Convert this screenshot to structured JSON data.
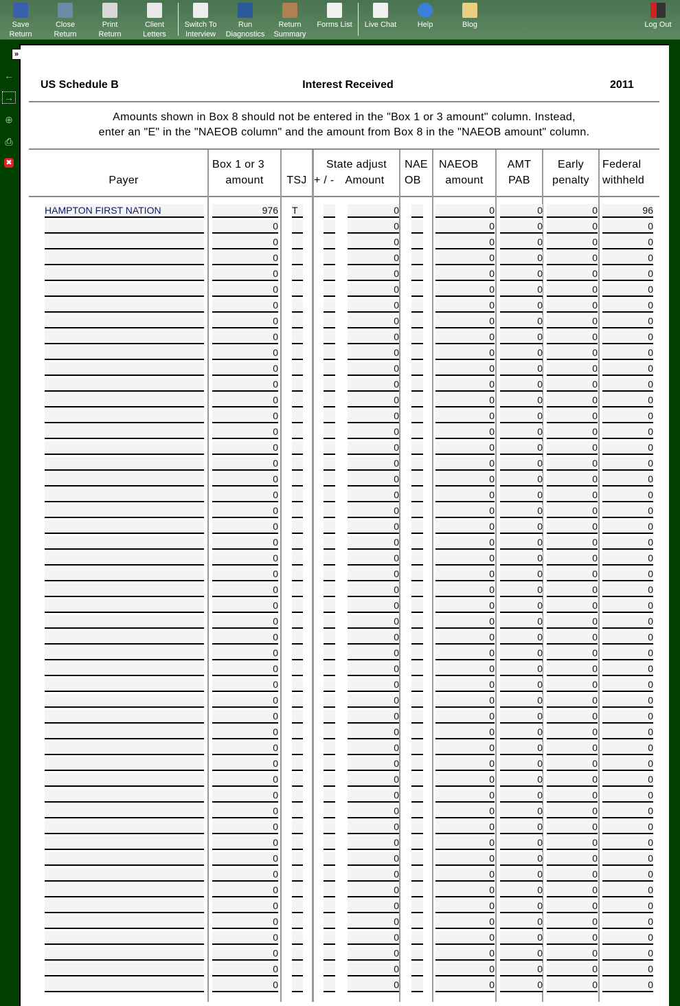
{
  "toolbar": {
    "items": [
      {
        "icon": "save-icon",
        "label1": "Save",
        "label2": "Return"
      },
      {
        "icon": "close-return-icon",
        "label1": "Close",
        "label2": "Return"
      },
      {
        "icon": "print-icon",
        "label1": "Print",
        "label2": "Return"
      },
      {
        "icon": "envelope-icon",
        "label1": "Client",
        "label2": "Letters"
      },
      {
        "icon": "switch-interview-icon",
        "label1": "Switch To",
        "label2": "Interview"
      },
      {
        "icon": "diagnostics-icon",
        "label1": "Run",
        "label2": "Diagnostics"
      },
      {
        "icon": "clipboard-icon",
        "label1": "Return",
        "label2": "Summary"
      },
      {
        "icon": "forms-list-icon",
        "label1": "Forms List",
        "label2": ""
      },
      {
        "icon": "chat-icon",
        "label1": "Live Chat",
        "label2": ""
      },
      {
        "icon": "help-icon",
        "label1": "Help",
        "label2": ""
      },
      {
        "icon": "blog-icon",
        "label1": "Blog",
        "label2": ""
      }
    ],
    "logout": "Log Out"
  },
  "form": {
    "title": "US Schedule B",
    "subtitle": "Interest Received",
    "year": "2011",
    "note1": "Amounts shown in Box 8 should not be entered in the  \"Box 1 or 3 amount\"  column.  Instead,",
    "note2": "enter an  \"E\"  in the  \"NAEOB column\"  and the amount from Box 8 in the  \"NAEOB amount\"  column."
  },
  "columns": {
    "payer": "Payer",
    "box1_a": "Box 1 or 3",
    "box1_b": "amount",
    "tsj": "TSJ",
    "state_a": "State adjust",
    "state_sign": "+ / -",
    "state_amt": "Amount",
    "naeob_a": "NAE",
    "naeob_b": "OB",
    "naeob_amt_a": "NAEOB",
    "naeob_amt_b": "amount",
    "amt_a": "AMT",
    "amt_b": "PAB",
    "early_a": "Early",
    "early_b": "penalty",
    "fed_a": "Federal",
    "fed_b": "withheld"
  },
  "colors": {
    "toolbar": "#5a845c",
    "sidebar": "#003f00",
    "field_bg": "#f4f4f4"
  },
  "rows": [
    [
      "HAMPTON FIRST NATION",
      "976",
      "T",
      "",
      "0",
      "",
      "0",
      "0",
      "0",
      "96"
    ],
    [
      "",
      "0",
      "",
      "",
      "0",
      "",
      "0",
      "0",
      "0",
      "0"
    ],
    [
      "",
      "0",
      "",
      "",
      "0",
      "",
      "0",
      "0",
      "0",
      "0"
    ],
    [
      "",
      "0",
      "",
      "",
      "0",
      "",
      "0",
      "0",
      "0",
      "0"
    ],
    [
      "",
      "0",
      "",
      "",
      "0",
      "",
      "0",
      "0",
      "0",
      "0"
    ],
    [
      "",
      "0",
      "",
      "",
      "0",
      "",
      "0",
      "0",
      "0",
      "0"
    ],
    [
      "",
      "0",
      "",
      "",
      "0",
      "",
      "0",
      "0",
      "0",
      "0"
    ],
    [
      "",
      "0",
      "",
      "",
      "0",
      "",
      "0",
      "0",
      "0",
      "0"
    ],
    [
      "",
      "0",
      "",
      "",
      "0",
      "",
      "0",
      "0",
      "0",
      "0"
    ],
    [
      "",
      "0",
      "",
      "",
      "0",
      "",
      "0",
      "0",
      "0",
      "0"
    ],
    [
      "",
      "0",
      "",
      "",
      "0",
      "",
      "0",
      "0",
      "0",
      "0"
    ],
    [
      "",
      "0",
      "",
      "",
      "0",
      "",
      "0",
      "0",
      "0",
      "0"
    ],
    [
      "",
      "0",
      "",
      "",
      "0",
      "",
      "0",
      "0",
      "0",
      "0"
    ],
    [
      "",
      "0",
      "",
      "",
      "0",
      "",
      "0",
      "0",
      "0",
      "0"
    ],
    [
      "",
      "0",
      "",
      "",
      "0",
      "",
      "0",
      "0",
      "0",
      "0"
    ],
    [
      "",
      "0",
      "",
      "",
      "0",
      "",
      "0",
      "0",
      "0",
      "0"
    ],
    [
      "",
      "0",
      "",
      "",
      "0",
      "",
      "0",
      "0",
      "0",
      "0"
    ],
    [
      "",
      "0",
      "",
      "",
      "0",
      "",
      "0",
      "0",
      "0",
      "0"
    ],
    [
      "",
      "0",
      "",
      "",
      "0",
      "",
      "0",
      "0",
      "0",
      "0"
    ],
    [
      "",
      "0",
      "",
      "",
      "0",
      "",
      "0",
      "0",
      "0",
      "0"
    ],
    [
      "",
      "0",
      "",
      "",
      "0",
      "",
      "0",
      "0",
      "0",
      "0"
    ],
    [
      "",
      "0",
      "",
      "",
      "0",
      "",
      "0",
      "0",
      "0",
      "0"
    ],
    [
      "",
      "0",
      "",
      "",
      "0",
      "",
      "0",
      "0",
      "0",
      "0"
    ],
    [
      "",
      "0",
      "",
      "",
      "0",
      "",
      "0",
      "0",
      "0",
      "0"
    ],
    [
      "",
      "0",
      "",
      "",
      "0",
      "",
      "0",
      "0",
      "0",
      "0"
    ],
    [
      "",
      "0",
      "",
      "",
      "0",
      "",
      "0",
      "0",
      "0",
      "0"
    ],
    [
      "",
      "0",
      "",
      "",
      "0",
      "",
      "0",
      "0",
      "0",
      "0"
    ],
    [
      "",
      "0",
      "",
      "",
      "0",
      "",
      "0",
      "0",
      "0",
      "0"
    ],
    [
      "",
      "0",
      "",
      "",
      "0",
      "",
      "0",
      "0",
      "0",
      "0"
    ],
    [
      "",
      "0",
      "",
      "",
      "0",
      "",
      "0",
      "0",
      "0",
      "0"
    ],
    [
      "",
      "0",
      "",
      "",
      "0",
      "",
      "0",
      "0",
      "0",
      "0"
    ],
    [
      "",
      "0",
      "",
      "",
      "0",
      "",
      "0",
      "0",
      "0",
      "0"
    ],
    [
      "",
      "0",
      "",
      "",
      "0",
      "",
      "0",
      "0",
      "0",
      "0"
    ],
    [
      "",
      "0",
      "",
      "",
      "0",
      "",
      "0",
      "0",
      "0",
      "0"
    ],
    [
      "",
      "0",
      "",
      "",
      "0",
      "",
      "0",
      "0",
      "0",
      "0"
    ],
    [
      "",
      "0",
      "",
      "",
      "0",
      "",
      "0",
      "0",
      "0",
      "0"
    ],
    [
      "",
      "0",
      "",
      "",
      "0",
      "",
      "0",
      "0",
      "0",
      "0"
    ],
    [
      "",
      "0",
      "",
      "",
      "0",
      "",
      "0",
      "0",
      "0",
      "0"
    ],
    [
      "",
      "0",
      "",
      "",
      "0",
      "",
      "0",
      "0",
      "0",
      "0"
    ],
    [
      "",
      "0",
      "",
      "",
      "0",
      "",
      "0",
      "0",
      "0",
      "0"
    ],
    [
      "",
      "0",
      "",
      "",
      "0",
      "",
      "0",
      "0",
      "0",
      "0"
    ],
    [
      "",
      "0",
      "",
      "",
      "0",
      "",
      "0",
      "0",
      "0",
      "0"
    ],
    [
      "",
      "0",
      "",
      "",
      "0",
      "",
      "0",
      "0",
      "0",
      "0"
    ],
    [
      "",
      "0",
      "",
      "",
      "0",
      "",
      "0",
      "0",
      "0",
      "0"
    ],
    [
      "",
      "0",
      "",
      "",
      "0",
      "",
      "0",
      "0",
      "0",
      "0"
    ],
    [
      "",
      "0",
      "",
      "",
      "0",
      "",
      "0",
      "0",
      "0",
      "0"
    ],
    [
      "",
      "0",
      "",
      "",
      "0",
      "",
      "0",
      "0",
      "0",
      "0"
    ],
    [
      "",
      "0",
      "",
      "",
      "0",
      "",
      "0",
      "0",
      "0",
      "0"
    ],
    [
      "",
      "0",
      "",
      "",
      "0",
      "",
      "0",
      "0",
      "0",
      "0"
    ],
    [
      "",
      "0",
      "",
      "",
      "0",
      "",
      "0",
      "0",
      "0",
      "0"
    ]
  ]
}
